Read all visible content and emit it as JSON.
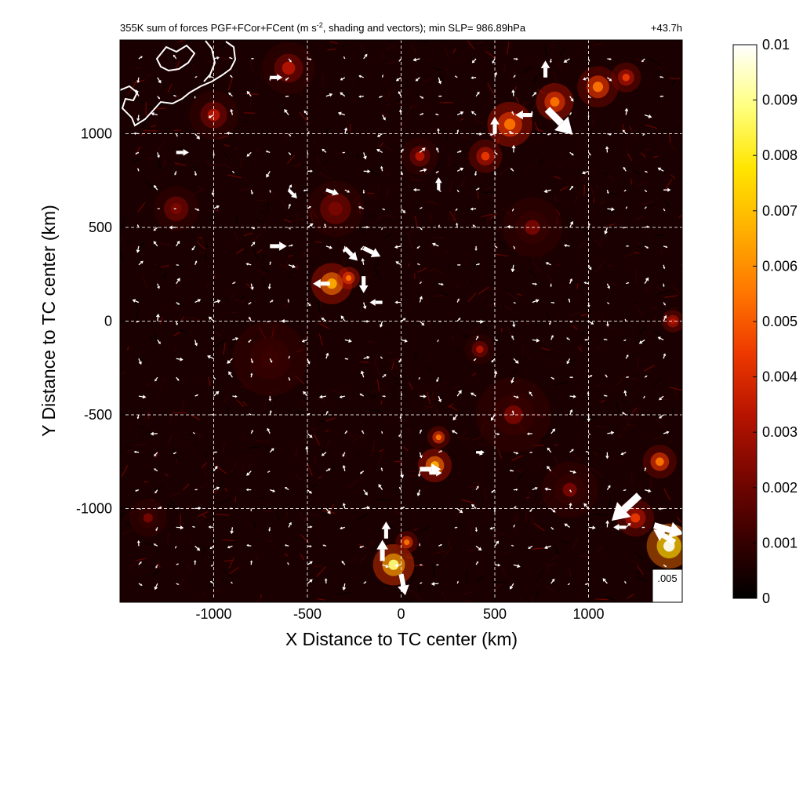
{
  "chart_data": {
    "type": "heatmap",
    "title_left": "355K sum of forces PGF+FCor+FCent (m s",
    "title_sup": "-2",
    "title_rest": ", shading and vectors); min SLP= 986.89hPa",
    "title_right": "+43.7h",
    "xlabel": "X Distance to TC center (km)",
    "ylabel": "Y Distance to TC center (km)",
    "xlim": [
      -1500,
      1500
    ],
    "ylim": [
      -1500,
      1500
    ],
    "x_ticks": [
      -1000,
      -500,
      0,
      500,
      1000
    ],
    "x_tick_labels": [
      "-1000",
      "-500",
      "0",
      "500",
      "1000"
    ],
    "y_ticks": [
      -1000,
      -500,
      0,
      500,
      1000
    ],
    "y_tick_labels": [
      "-1000",
      "-500",
      "0",
      "500",
      "1000"
    ],
    "grid": true,
    "grid_style": "dashed white",
    "colormap": [
      "#000000",
      "#3a0000",
      "#7a0600",
      "#b81400",
      "#ee3a00",
      "#ff7800",
      "#ffb000",
      "#ffe600",
      "#ffff80",
      "#ffffff"
    ],
    "colorbar": {
      "min": 0,
      "max": 0.01,
      "ticks": [
        0,
        0.001,
        0.002,
        0.003,
        0.004,
        0.005,
        0.006,
        0.007,
        0.008,
        0.009,
        0.01
      ],
      "tick_labels": [
        "0",
        "0.001",
        "0.002",
        "0.003",
        "0.004",
        "0.005",
        "0.006",
        "0.007",
        "0.008",
        "0.009",
        "0.01"
      ]
    },
    "reference_vector": {
      "label": ".005",
      "value": 0.005
    },
    "hotspots": [
      {
        "x": -370,
        "y": 200,
        "r": 110,
        "value": 0.0065
      },
      {
        "x": -280,
        "y": 230,
        "r": 60,
        "value": 0.006
      },
      {
        "x": 180,
        "y": -770,
        "r": 90,
        "value": 0.007
      },
      {
        "x": 200,
        "y": -620,
        "r": 60,
        "value": 0.005
      },
      {
        "x": -40,
        "y": -1300,
        "r": 110,
        "value": 0.009
      },
      {
        "x": 30,
        "y": -1180,
        "r": 60,
        "value": 0.005
      },
      {
        "x": 1430,
        "y": -1200,
        "r": 120,
        "value": 0.01
      },
      {
        "x": 1380,
        "y": -750,
        "r": 90,
        "value": 0.005
      },
      {
        "x": 1250,
        "y": -1050,
        "r": 100,
        "value": 0.004
      },
      {
        "x": 580,
        "y": 1050,
        "r": 120,
        "value": 0.006
      },
      {
        "x": 820,
        "y": 1170,
        "r": 100,
        "value": 0.006
      },
      {
        "x": 1050,
        "y": 1250,
        "r": 110,
        "value": 0.005
      },
      {
        "x": 1200,
        "y": 1300,
        "r": 80,
        "value": 0.004
      },
      {
        "x": 450,
        "y": 880,
        "r": 90,
        "value": 0.004
      },
      {
        "x": -600,
        "y": 1350,
        "r": 140,
        "value": 0.003
      },
      {
        "x": -1000,
        "y": 1100,
        "r": 130,
        "value": 0.003
      },
      {
        "x": 100,
        "y": 880,
        "r": 100,
        "value": 0.003
      },
      {
        "x": -1350,
        "y": -1050,
        "r": 100,
        "value": 0.002
      },
      {
        "x": 1450,
        "y": 0,
        "r": 60,
        "value": 0.0035
      },
      {
        "x": 420,
        "y": -150,
        "r": 80,
        "value": 0.003
      },
      {
        "x": -350,
        "y": 600,
        "r": 150,
        "value": 0.0025
      },
      {
        "x": 700,
        "y": 500,
        "r": 160,
        "value": 0.002
      },
      {
        "x": -700,
        "y": -200,
        "r": 200,
        "value": 0.0015
      },
      {
        "x": 600,
        "y": -500,
        "r": 200,
        "value": 0.0018
      },
      {
        "x": 900,
        "y": -900,
        "r": 150,
        "value": 0.002
      },
      {
        "x": -1200,
        "y": 600,
        "r": 120,
        "value": 0.0025
      }
    ],
    "vectors": [
      {
        "x": 780,
        "y": 1130,
        "u": 0.006,
        "v": -0.006
      },
      {
        "x": 1270,
        "y": -930,
        "u": -0.0065,
        "v": -0.006
      },
      {
        "x": 1350,
        "y": -1090,
        "u": 0.007,
        "v": -0.002
      },
      {
        "x": 1460,
        "y": -1180,
        "u": -0.005,
        "v": 0.003
      },
      {
        "x": -700,
        "y": 400,
        "u": 0.004,
        "v": 0
      },
      {
        "x": -300,
        "y": 390,
        "u": 0.003,
        "v": -0.003
      },
      {
        "x": -200,
        "y": 390,
        "u": 0.004,
        "v": -0.002
      },
      {
        "x": -380,
        "y": 200,
        "u": -0.004,
        "v": 0
      },
      {
        "x": -200,
        "y": 240,
        "u": 0,
        "v": -0.004
      },
      {
        "x": 100,
        "y": -790,
        "u": 0.005,
        "v": 0
      },
      {
        "x": 150,
        "y": -810,
        "u": 0.003,
        "v": 0
      },
      {
        "x": -100,
        "y": -1280,
        "u": 0,
        "v": 0.005
      },
      {
        "x": -80,
        "y": -1160,
        "u": 0,
        "v": 0.004
      },
      {
        "x": 0,
        "y": -1350,
        "u": 0.001,
        "v": -0.005
      },
      {
        "x": 500,
        "y": 1000,
        "u": 0,
        "v": 0.004
      },
      {
        "x": 770,
        "y": 1300,
        "u": 0,
        "v": 0.004
      },
      {
        "x": 700,
        "y": 1100,
        "u": -0.004,
        "v": 0
      },
      {
        "x": -700,
        "y": 1300,
        "u": 0.003,
        "v": 0
      },
      {
        "x": -1200,
        "y": 900,
        "u": 0.003,
        "v": 0
      },
      {
        "x": -600,
        "y": 700,
        "u": 0.002,
        "v": -0.002
      },
      {
        "x": -400,
        "y": 700,
        "u": 0.003,
        "v": -0.001
      },
      {
        "x": 200,
        "y": 700,
        "u": 0,
        "v": 0.003
      },
      {
        "x": -100,
        "y": 100,
        "u": -0.003,
        "v": 0
      },
      {
        "x": 400,
        "y": -700,
        "u": 0.002,
        "v": 0
      },
      {
        "x": 1200,
        "y": -1100,
        "u": -0.003,
        "v": 0
      }
    ]
  }
}
